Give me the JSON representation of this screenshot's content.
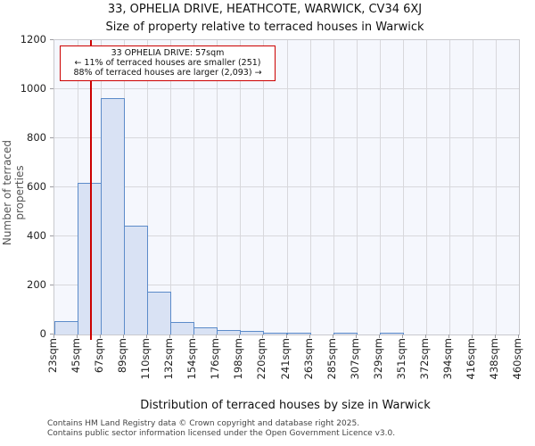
{
  "title": {
    "line1": "33, OPHELIA DRIVE, HEATHCOTE, WARWICK, CV34 6XJ",
    "line2": "Size of property relative to terraced houses in Warwick"
  },
  "annotation": {
    "line1": "33 OPHELIA DRIVE: 57sqm",
    "line2": "← 11% of terraced houses are smaller (251)",
    "line3": "88% of terraced houses are larger (2,093) →"
  },
  "chart_data": {
    "type": "bar",
    "title": "33, OPHELIA DRIVE, HEATHCOTE, WARWICK, CV34 6XJ",
    "subtitle": "Size of property relative to terraced houses in Warwick",
    "xlabel": "Distribution of terraced houses by size in Warwick",
    "ylabel": "Number of terraced properties",
    "categories": [
      "23sqm",
      "45sqm",
      "67sqm",
      "89sqm",
      "110sqm",
      "132sqm",
      "154sqm",
      "176sqm",
      "198sqm",
      "220sqm",
      "241sqm",
      "263sqm",
      "285sqm",
      "307sqm",
      "329sqm",
      "351sqm",
      "372sqm",
      "394sqm",
      "416sqm",
      "438sqm",
      "460sqm"
    ],
    "bin_edges_sqm": [
      23,
      45,
      67,
      89,
      110,
      132,
      154,
      176,
      198,
      220,
      241,
      263,
      285,
      307,
      329,
      351,
      372,
      394,
      416,
      438,
      460
    ],
    "values": [
      55,
      620,
      965,
      445,
      175,
      50,
      30,
      20,
      15,
      4,
      4,
      0,
      6,
      0,
      5,
      0,
      0,
      0,
      0,
      0
    ],
    "ylim": [
      0,
      1200
    ],
    "yticks": [
      0,
      200,
      400,
      600,
      800,
      1000,
      1200
    ],
    "grid": true,
    "legend": "none",
    "marker": {
      "value_sqm": 57,
      "color": "#cc0000"
    },
    "colors": {
      "bar_fill": "#d9e2f4",
      "bar_edge": "#5c8bc9",
      "plot_bg": "#f5f7fd",
      "gridline": "#d8d8dc",
      "marker_line": "#cc0000",
      "annotation_border": "#cc0000"
    }
  },
  "footer": {
    "line1": "Contains HM Land Registry data © Crown copyright and database right 2025.",
    "line2": "Contains public sector information licensed under the Open Government Licence v3.0."
  }
}
